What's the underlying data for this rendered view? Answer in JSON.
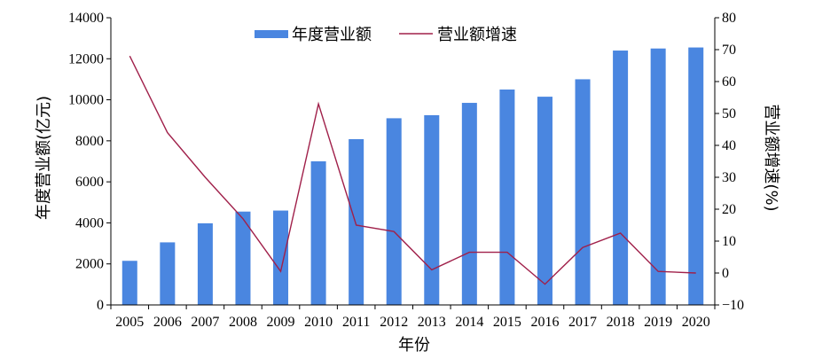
{
  "chart_data": {
    "type": "bar+line",
    "categories": [
      "2005",
      "2006",
      "2007",
      "2008",
      "2009",
      "2010",
      "2011",
      "2012",
      "2013",
      "2014",
      "2015",
      "2016",
      "2017",
      "2018",
      "2019",
      "2020"
    ],
    "series": [
      {
        "name": "年度营业额",
        "type": "bar",
        "axis": "left",
        "color": "#4a86e0",
        "values": [
          2150,
          3050,
          3980,
          4550,
          4600,
          7000,
          8080,
          9100,
          9250,
          9850,
          10500,
          10150,
          11000,
          12400,
          12500,
          12550
        ]
      },
      {
        "name": "营业额增速",
        "type": "line",
        "axis": "right",
        "color": "#a0204a",
        "values": [
          68,
          44,
          30,
          17,
          0.5,
          53,
          15,
          13,
          1,
          6.5,
          6.5,
          -3.5,
          8,
          12.5,
          0.5,
          0
        ]
      }
    ],
    "y_left": {
      "label": "年度营业额(亿元)",
      "lim": [
        0,
        14000
      ],
      "ticks": [
        "0",
        "2000",
        "4000",
        "6000",
        "8000",
        "10000",
        "12000",
        "14000"
      ]
    },
    "y_right": {
      "label": "营业额增速(%)",
      "lim": [
        -10,
        80
      ],
      "ticks": [
        "−10",
        "0",
        "10",
        "20",
        "30",
        "40",
        "50",
        "60",
        "70",
        "80"
      ]
    },
    "xlabel": "年份",
    "grid": false,
    "legend": "top-center"
  }
}
